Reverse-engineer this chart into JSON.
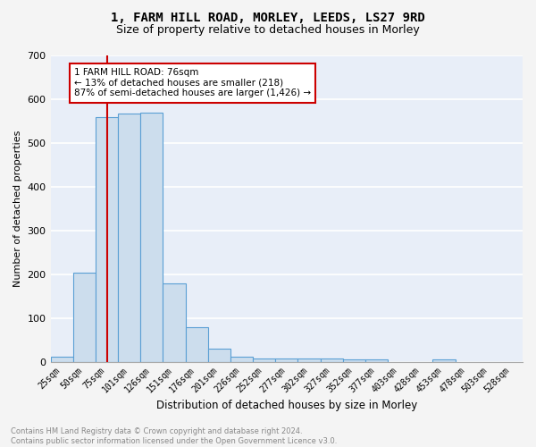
{
  "title1": "1, FARM HILL ROAD, MORLEY, LEEDS, LS27 9RD",
  "title2": "Size of property relative to detached houses in Morley",
  "xlabel": "Distribution of detached houses by size in Morley",
  "ylabel": "Number of detached properties",
  "bar_color": "#ccdded",
  "bar_edge_color": "#5a9fd4",
  "categories": [
    "25sqm",
    "50sqm",
    "75sqm",
    "101sqm",
    "126sqm",
    "151sqm",
    "176sqm",
    "201sqm",
    "226sqm",
    "252sqm",
    "277sqm",
    "302sqm",
    "327sqm",
    "352sqm",
    "377sqm",
    "403sqm",
    "428sqm",
    "453sqm",
    "478sqm",
    "503sqm",
    "528sqm"
  ],
  "values": [
    12,
    204,
    558,
    567,
    568,
    178,
    79,
    29,
    12,
    8,
    8,
    8,
    8,
    6,
    6,
    0,
    0,
    6,
    0,
    0,
    0
  ],
  "ylim": [
    0,
    700
  ],
  "yticks": [
    0,
    100,
    200,
    300,
    400,
    500,
    600,
    700
  ],
  "annotation_text": "1 FARM HILL ROAD: 76sqm\n← 13% of detached houses are smaller (218)\n87% of semi-detached houses are larger (1,426) →",
  "annotation_box_color": "#ffffff",
  "annotation_box_edge": "#cc0000",
  "vline_color": "#cc0000",
  "footer": "Contains HM Land Registry data © Crown copyright and database right 2024.\nContains public sector information licensed under the Open Government Licence v3.0.",
  "bg_color": "#e8eef8",
  "grid_color": "#ffffff",
  "fig_bg": "#f4f4f4"
}
